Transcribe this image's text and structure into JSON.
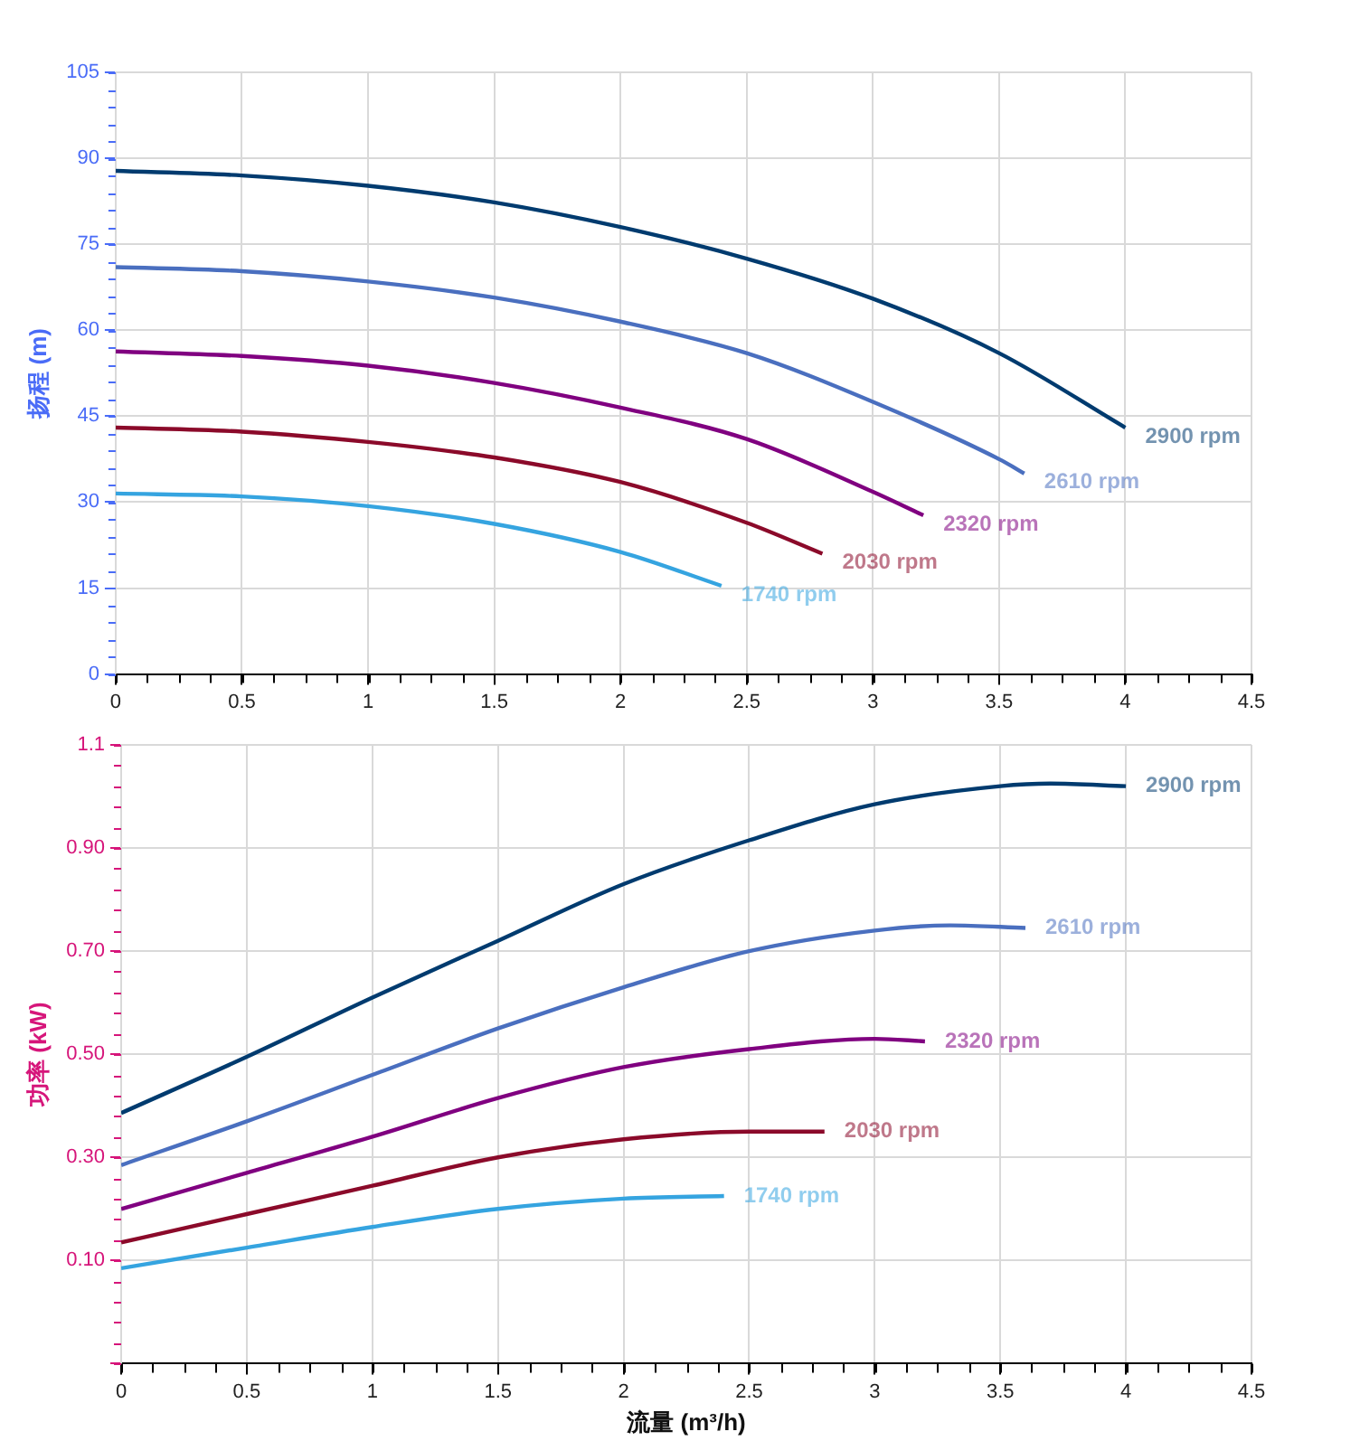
{
  "chart_data": [
    {
      "type": "line",
      "ylabel": "扬程 (m)",
      "xlim": [
        0,
        4.5
      ],
      "xticks": [
        0,
        0.5,
        1,
        1.5,
        2,
        2.5,
        3,
        3.5,
        4,
        4.5
      ],
      "ylim": [
        0,
        105
      ],
      "yticks": [
        0,
        15,
        30,
        45,
        60,
        75,
        90,
        105
      ],
      "grid": true,
      "legend": false,
      "marker": "none",
      "line_style": "solid",
      "series": [
        {
          "name": "2900 rpm",
          "color": "#003b6f",
          "x": [
            0,
            0.5,
            1,
            1.5,
            2,
            2.5,
            3,
            3.5,
            4
          ],
          "values": [
            87.8,
            87,
            85.2,
            82.3,
            78,
            72.5,
            65.5,
            56,
            43
          ]
        },
        {
          "name": "2610 rpm",
          "color": "#4a6fbf",
          "x": [
            0,
            0.5,
            1,
            1.5,
            2,
            2.5,
            3,
            3.5,
            3.6
          ],
          "values": [
            71,
            70.3,
            68.5,
            65.7,
            61.5,
            56,
            47.5,
            37.5,
            35
          ]
        },
        {
          "name": "2320 rpm",
          "color": "#800080",
          "x": [
            0,
            0.5,
            1,
            1.5,
            2,
            2.5,
            3,
            3.2
          ],
          "values": [
            56.3,
            55.5,
            53.8,
            50.8,
            46.5,
            41,
            31.8,
            27.7
          ]
        },
        {
          "name": "2030 rpm",
          "color": "#8b0a2a",
          "x": [
            0,
            0.5,
            1,
            1.5,
            2,
            2.5,
            2.8
          ],
          "values": [
            43,
            42.3,
            40.5,
            37.8,
            33.5,
            26.4,
            21
          ]
        },
        {
          "name": "1740 rpm",
          "color": "#35a4e0",
          "x": [
            0,
            0.5,
            1,
            1.5,
            2,
            2.4
          ],
          "values": [
            31.5,
            31,
            29.3,
            26.2,
            21.3,
            15.4
          ]
        }
      ]
    },
    {
      "type": "line",
      "xlabel": "流量 (m³/h)",
      "ylabel": "功率 (kW)",
      "xlim": [
        0,
        4.5
      ],
      "xticks": [
        0,
        0.5,
        1,
        1.5,
        2,
        2.5,
        3,
        3.5,
        4,
        4.5
      ],
      "ylim": [
        -0.1,
        1.1
      ],
      "yticks": [
        {
          "value": -0.1,
          "label": null
        },
        {
          "value": 0.1,
          "label": "0.10"
        },
        {
          "value": 0.3,
          "label": "0.30"
        },
        {
          "value": 0.5,
          "label": "0.50"
        },
        {
          "value": 0.7,
          "label": "0.70"
        },
        {
          "value": 0.9,
          "label": "0.90"
        },
        1.1
      ],
      "grid": true,
      "legend": false,
      "marker": "none",
      "line_style": "solid",
      "series": [
        {
          "name": "2900 rpm",
          "color": "#003b6f",
          "x": [
            0,
            0.5,
            1,
            1.5,
            2,
            2.5,
            3,
            3.5,
            3.7,
            4
          ],
          "values": [
            0.386,
            0.495,
            0.61,
            0.72,
            0.83,
            0.915,
            0.985,
            1.02,
            1.025,
            1.02
          ]
        },
        {
          "name": "2610 rpm",
          "color": "#4a6fbf",
          "x": [
            0,
            0.5,
            1,
            1.5,
            2,
            2.5,
            3,
            3.3,
            3.6
          ],
          "values": [
            0.285,
            0.37,
            0.46,
            0.55,
            0.63,
            0.7,
            0.74,
            0.75,
            0.745
          ]
        },
        {
          "name": "2320 rpm",
          "color": "#800080",
          "x": [
            0,
            0.5,
            1,
            1.5,
            2,
            2.5,
            3,
            3.2
          ],
          "values": [
            0.2,
            0.27,
            0.34,
            0.415,
            0.475,
            0.51,
            0.53,
            0.525
          ]
        },
        {
          "name": "2030 rpm",
          "color": "#8b0a2a",
          "x": [
            0,
            0.5,
            1,
            1.5,
            2,
            2.5,
            2.8
          ],
          "values": [
            0.135,
            0.19,
            0.245,
            0.3,
            0.335,
            0.35,
            0.35
          ]
        },
        {
          "name": "1740 rpm",
          "color": "#35a4e0",
          "x": [
            0,
            0.5,
            1,
            1.5,
            2,
            2.4
          ],
          "values": [
            0.085,
            0.125,
            0.165,
            0.2,
            0.22,
            0.225
          ]
        }
      ]
    }
  ]
}
